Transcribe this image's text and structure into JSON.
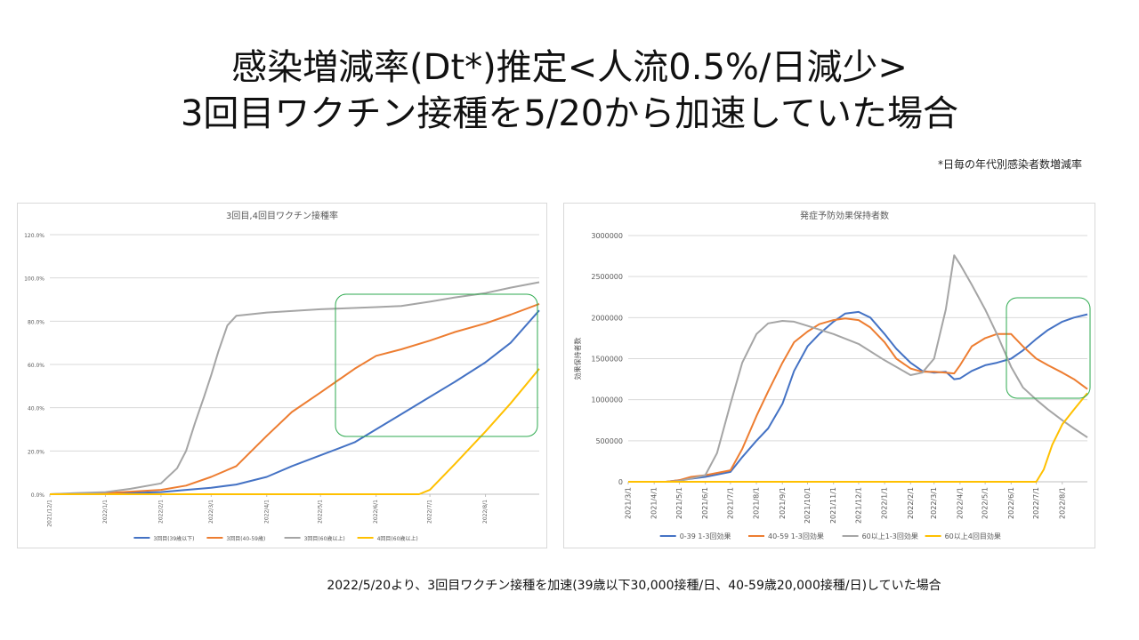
{
  "title": {
    "line1": "感染増減率(Dt*)推定<人流0.5%/日減少>",
    "line2": "3回目ワクチン接種を5/20から加速していた場合"
  },
  "note": "*日毎の年代別感染者数増減率",
  "caption": "2022/5/20より、3回目ワクチン接種を加速(39歳以下30,000接種/日、40-59歳20,000接種/日)していた場合",
  "chart_data": [
    {
      "type": "line",
      "title": "3回目,4回目ワクチン接種率",
      "x_start": "2021/12/1",
      "x_end": "2022/8/31",
      "x_ticks": [
        "2021/12/1",
        "2022/1/1",
        "2022/2/1",
        "2022/3/1",
        "2022/4/1",
        "2022/5/1",
        "2022/6/1",
        "2022/7/1",
        "2022/8/1"
      ],
      "y_ticks": [
        "0.0%",
        "20.0%",
        "40.0%",
        "60.0%",
        "80.0%",
        "100.0%",
        "120.0%"
      ],
      "ylim": [
        0,
        120
      ],
      "series": [
        {
          "name": "3回目(39歳以下)",
          "color": "#4472c4",
          "points": [
            [
              "2021/12/1",
              0
            ],
            [
              "2022/1/1",
              0.3
            ],
            [
              "2022/2/1",
              1
            ],
            [
              "2022/2/15",
              2
            ],
            [
              "2022/3/1",
              3
            ],
            [
              "2022/3/15",
              4.5
            ],
            [
              "2022/4/1",
              8
            ],
            [
              "2022/4/15",
              13
            ],
            [
              "2022/5/1",
              18
            ],
            [
              "2022/5/20",
              24
            ],
            [
              "2022/6/1",
              30
            ],
            [
              "2022/6/15",
              37
            ],
            [
              "2022/7/1",
              45
            ],
            [
              "2022/7/15",
              52
            ],
            [
              "2022/8/1",
              61
            ],
            [
              "2022/8/15",
              70
            ],
            [
              "2022/8/31",
              85
            ]
          ]
        },
        {
          "name": "3回目(40-59歳)",
          "color": "#ed7d31",
          "points": [
            [
              "2021/12/1",
              0
            ],
            [
              "2022/1/1",
              0.5
            ],
            [
              "2022/2/1",
              2
            ],
            [
              "2022/2/15",
              4
            ],
            [
              "2022/3/1",
              8
            ],
            [
              "2022/3/15",
              13
            ],
            [
              "2022/4/1",
              27
            ],
            [
              "2022/4/15",
              38
            ],
            [
              "2022/5/1",
              47
            ],
            [
              "2022/5/20",
              58
            ],
            [
              "2022/6/1",
              64
            ],
            [
              "2022/6/15",
              67
            ],
            [
              "2022/7/1",
              71
            ],
            [
              "2022/7/15",
              75
            ],
            [
              "2022/8/1",
              79
            ],
            [
              "2022/8/15",
              83
            ],
            [
              "2022/8/31",
              88
            ]
          ]
        },
        {
          "name": "3回目(60歳以上)",
          "color": "#a5a5a5",
          "points": [
            [
              "2021/12/1",
              0
            ],
            [
              "2021/12/15",
              0.5
            ],
            [
              "2022/1/1",
              1
            ],
            [
              "2022/1/15",
              2.5
            ],
            [
              "2022/2/1",
              5
            ],
            [
              "2022/2/10",
              12
            ],
            [
              "2022/2/15",
              20
            ],
            [
              "2022/2/20",
              33
            ],
            [
              "2022/2/25",
              45
            ],
            [
              "2022/3/1",
              55
            ],
            [
              "2022/3/5",
              66
            ],
            [
              "2022/3/10",
              78
            ],
            [
              "2022/3/15",
              82.5
            ],
            [
              "2022/4/1",
              84
            ],
            [
              "2022/5/1",
              85.5
            ],
            [
              "2022/6/1",
              86.5
            ],
            [
              "2022/6/15",
              87
            ],
            [
              "2022/7/1",
              89
            ],
            [
              "2022/7/15",
              91
            ],
            [
              "2022/8/1",
              93
            ],
            [
              "2022/8/15",
              95.5
            ],
            [
              "2022/8/31",
              98
            ]
          ]
        },
        {
          "name": "4回目(60歳以上)",
          "color": "#ffc000",
          "points": [
            [
              "2021/12/1",
              0
            ],
            [
              "2022/6/25",
              0
            ],
            [
              "2022/7/1",
              2
            ],
            [
              "2022/7/15",
              14
            ],
            [
              "2022/8/1",
              29
            ],
            [
              "2022/8/15",
              42
            ],
            [
              "2022/8/31",
              58
            ]
          ]
        }
      ]
    },
    {
      "type": "line",
      "title": "発症予防効果保持者数",
      "ylabel": "効果保持者数",
      "x_start": "2021/3/1",
      "x_end": "2022/8/31",
      "x_ticks": [
        "2021/3/1",
        "2021/4/1",
        "2021/5/1",
        "2021/6/1",
        "2021/7/1",
        "2021/8/1",
        "2021/9/1",
        "2021/10/1",
        "2021/11/1",
        "2021/12/1",
        "2022/1/1",
        "2022/2/1",
        "2022/3/1",
        "2022/4/1",
        "2022/5/1",
        "2022/6/1",
        "2022/7/1",
        "2022/8/1"
      ],
      "y_ticks": [
        "0",
        "500000",
        "1000000",
        "1500000",
        "2000000",
        "2500000",
        "3000000"
      ],
      "ylim": [
        0,
        3000000
      ],
      "series": [
        {
          "name": "0-39 1-3回効果",
          "color": "#4472c4",
          "points": [
            [
              "2021/3/1",
              0
            ],
            [
              "2021/4/15",
              0
            ],
            [
              "2021/5/1",
              20000
            ],
            [
              "2021/6/1",
              60000
            ],
            [
              "2021/7/1",
              120000
            ],
            [
              "2021/7/15",
              300000
            ],
            [
              "2021/8/1",
              500000
            ],
            [
              "2021/8/15",
              650000
            ],
            [
              "2021/9/1",
              950000
            ],
            [
              "2021/9/15",
              1350000
            ],
            [
              "2021/10/1",
              1650000
            ],
            [
              "2021/10/15",
              1800000
            ],
            [
              "2021/11/1",
              1950000
            ],
            [
              "2021/11/15",
              2050000
            ],
            [
              "2021/12/1",
              2070000
            ],
            [
              "2021/12/15",
              2000000
            ],
            [
              "2022/1/1",
              1800000
            ],
            [
              "2022/1/15",
              1620000
            ],
            [
              "2022/2/1",
              1450000
            ],
            [
              "2022/2/15",
              1350000
            ],
            [
              "2022/3/1",
              1330000
            ],
            [
              "2022/3/15",
              1340000
            ],
            [
              "2022/3/25",
              1250000
            ],
            [
              "2022/4/1",
              1260000
            ],
            [
              "2022/4/15",
              1350000
            ],
            [
              "2022/5/1",
              1420000
            ],
            [
              "2022/5/15",
              1450000
            ],
            [
              "2022/6/1",
              1500000
            ],
            [
              "2022/6/15",
              1600000
            ],
            [
              "2022/7/1",
              1740000
            ],
            [
              "2022/7/15",
              1850000
            ],
            [
              "2022/8/1",
              1950000
            ],
            [
              "2022/8/15",
              2000000
            ],
            [
              "2022/8/31",
              2040000
            ]
          ]
        },
        {
          "name": "40-59 1-3回効果",
          "color": "#ed7d31",
          "points": [
            [
              "2021/3/1",
              0
            ],
            [
              "2021/4/15",
              0
            ],
            [
              "2021/5/1",
              20000
            ],
            [
              "2021/5/15",
              60000
            ],
            [
              "2021/6/1",
              80000
            ],
            [
              "2021/7/1",
              140000
            ],
            [
              "2021/7/15",
              400000
            ],
            [
              "2021/8/1",
              800000
            ],
            [
              "2021/8/15",
              1100000
            ],
            [
              "2021/9/1",
              1450000
            ],
            [
              "2021/9/15",
              1700000
            ],
            [
              "2021/10/1",
              1830000
            ],
            [
              "2021/10/15",
              1920000
            ],
            [
              "2021/11/1",
              1970000
            ],
            [
              "2021/11/15",
              1990000
            ],
            [
              "2021/12/1",
              1970000
            ],
            [
              "2021/12/15",
              1880000
            ],
            [
              "2022/1/1",
              1700000
            ],
            [
              "2022/1/15",
              1500000
            ],
            [
              "2022/2/1",
              1380000
            ],
            [
              "2022/2/15",
              1340000
            ],
            [
              "2022/3/1",
              1340000
            ],
            [
              "2022/3/15",
              1330000
            ],
            [
              "2022/3/25",
              1320000
            ],
            [
              "2022/4/1",
              1420000
            ],
            [
              "2022/4/15",
              1650000
            ],
            [
              "2022/5/1",
              1750000
            ],
            [
              "2022/5/15",
              1800000
            ],
            [
              "2022/6/1",
              1800000
            ],
            [
              "2022/6/15",
              1650000
            ],
            [
              "2022/7/1",
              1500000
            ],
            [
              "2022/7/15",
              1420000
            ],
            [
              "2022/8/1",
              1330000
            ],
            [
              "2022/8/15",
              1250000
            ],
            [
              "2022/8/31",
              1130000
            ]
          ]
        },
        {
          "name": "60以上1-3回効果",
          "color": "#a5a5a5",
          "points": [
            [
              "2021/3/1",
              0
            ],
            [
              "2021/4/15",
              0
            ],
            [
              "2021/5/1",
              10000
            ],
            [
              "2021/5/15",
              40000
            ],
            [
              "2021/6/1",
              80000
            ],
            [
              "2021/6/15",
              350000
            ],
            [
              "2021/7/1",
              950000
            ],
            [
              "2021/7/15",
              1450000
            ],
            [
              "2021/8/1",
              1800000
            ],
            [
              "2021/8/15",
              1930000
            ],
            [
              "2021/9/1",
              1960000
            ],
            [
              "2021/9/15",
              1950000
            ],
            [
              "2021/10/1",
              1900000
            ],
            [
              "2021/11/1",
              1800000
            ],
            [
              "2021/12/1",
              1680000
            ],
            [
              "2022/1/1",
              1480000
            ],
            [
              "2022/2/1",
              1300000
            ],
            [
              "2022/2/15",
              1330000
            ],
            [
              "2022/3/1",
              1500000
            ],
            [
              "2022/3/15",
              2100000
            ],
            [
              "2022/3/25",
              2760000
            ],
            [
              "2022/4/1",
              2650000
            ],
            [
              "2022/4/15",
              2400000
            ],
            [
              "2022/5/1",
              2100000
            ],
            [
              "2022/5/15",
              1800000
            ],
            [
              "2022/6/1",
              1400000
            ],
            [
              "2022/6/15",
              1150000
            ],
            [
              "2022/7/1",
              1000000
            ],
            [
              "2022/7/15",
              880000
            ],
            [
              "2022/8/1",
              750000
            ],
            [
              "2022/8/15",
              650000
            ],
            [
              "2022/8/31",
              540000
            ]
          ]
        },
        {
          "name": "60以上4回目効果",
          "color": "#ffc000",
          "points": [
            [
              "2021/3/1",
              0
            ],
            [
              "2022/7/1",
              0
            ],
            [
              "2022/7/10",
              150000
            ],
            [
              "2022/7/20",
              450000
            ],
            [
              "2022/8/1",
              700000
            ],
            [
              "2022/8/15",
              880000
            ],
            [
              "2022/8/31",
              1080000
            ]
          ]
        }
      ]
    }
  ]
}
